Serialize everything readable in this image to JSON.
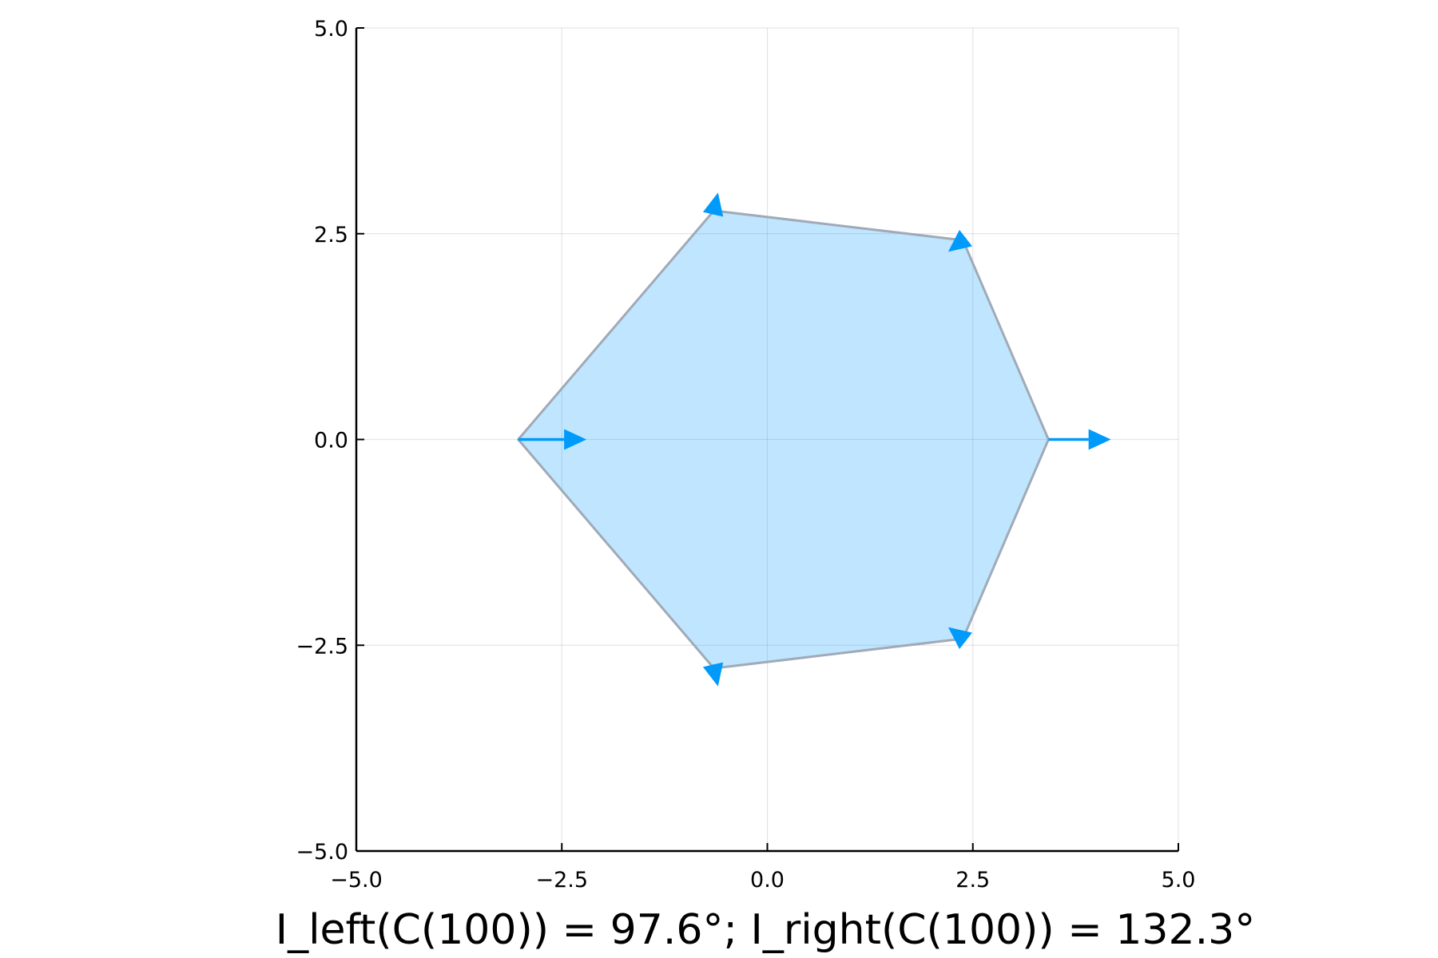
{
  "chart_data": {
    "type": "area",
    "title": "",
    "xlabel": "I_left(C(100)) = 97.6°; I_right(C(100)) = 132.3°",
    "ylabel": "",
    "xlim": [
      -5.0,
      5.0
    ],
    "ylim": [
      -5.0,
      5.0
    ],
    "xticks": [
      -5.0,
      -2.5,
      0.0,
      2.5,
      5.0
    ],
    "yticks": [
      -5.0,
      -2.5,
      0.0,
      2.5,
      5.0
    ],
    "xtick_labels": [
      "−5.0",
      "−2.5",
      "0.0",
      "2.5",
      "5.0"
    ],
    "ytick_labels": [
      "−5.0",
      "−2.5",
      "0.0",
      "2.5",
      "5.0"
    ],
    "grid": true,
    "legend": "none",
    "polygon": {
      "x": [
        -3.03,
        -0.65,
        2.38,
        3.42,
        2.38,
        -0.65
      ],
      "y": [
        0.0,
        2.78,
        2.42,
        0.0,
        -2.42,
        -2.78
      ],
      "fill_color": "#009AFA",
      "fill_opacity": 0.25,
      "edge_color": "#A0AAB8"
    },
    "arrows": [
      {
        "x0": -3.03,
        "y0": 0.0,
        "x1": -2.2,
        "y1": 0.0
      },
      {
        "x0": 3.42,
        "y0": 0.0,
        "x1": 4.18,
        "y1": 0.0
      },
      {
        "x0": -0.65,
        "y0": 2.78,
        "x1": -0.6,
        "y1": 3.0
      },
      {
        "x0": -0.65,
        "y0": -2.78,
        "x1": -0.6,
        "y1": -3.0
      },
      {
        "x0": 2.38,
        "y0": 2.42,
        "x1": 2.2,
        "y1": 2.28
      },
      {
        "x0": 2.38,
        "y0": -2.42,
        "x1": 2.2,
        "y1": -2.28
      }
    ],
    "arrow_color": "#009AFA"
  }
}
